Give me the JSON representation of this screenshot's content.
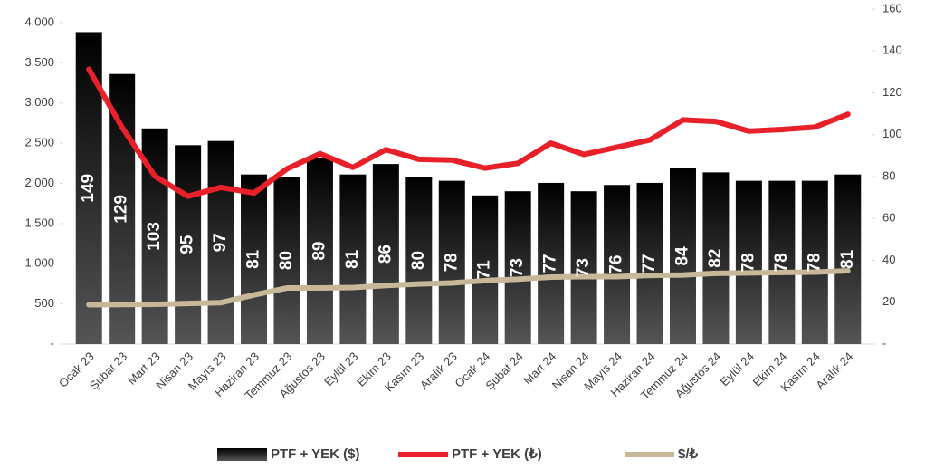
{
  "chart_data": {
    "type": "combo",
    "categories": [
      "Ocak 23",
      "Şubat 23",
      "Mart 23",
      "Nisan 23",
      "Mayıs 23",
      "Haziran 23",
      "Temmuz 23",
      "Ağustos 23",
      "Eylül 23",
      "Ekim 23",
      "Kasım 23",
      "Aralık 23",
      "Ocak 24",
      "Şubat 24",
      "Mart 24",
      "Nisan 24",
      "Mayıs 24",
      "Haziran 24",
      "Temmuz 24",
      "Ağustos 24",
      "Eylül 24",
      "Ekim 24",
      "Kasım 24",
      "Aralık 24"
    ],
    "series": [
      {
        "name": "PTF + YEK ($)",
        "type": "bar",
        "axis": "y2",
        "color": "#000000",
        "values": [
          149,
          129,
          103,
          95,
          97,
          81,
          80,
          89,
          81,
          86,
          80,
          78,
          71,
          73,
          77,
          73,
          76,
          77,
          84,
          82,
          78,
          78,
          78,
          81
        ]
      },
      {
        "name": "PTF + YEK (₺)",
        "type": "line",
        "color": "#e8202a",
        "values": [
          3420,
          2700,
          2090,
          1840,
          1950,
          1880,
          2180,
          2370,
          2200,
          2420,
          2300,
          2290,
          2190,
          2250,
          2500,
          2360,
          2450,
          2540,
          2790,
          2770,
          2650,
          2670,
          2700,
          2860
        ]
      },
      {
        "name": "$/₺",
        "type": "line",
        "axis": "y2",
        "color": "#c8b89a",
        "values": [
          18.8,
          18.9,
          19.0,
          19.4,
          19.8,
          23.5,
          26.8,
          26.8,
          27.0,
          28.0,
          28.7,
          29.2,
          30.3,
          31.0,
          32.0,
          32.2,
          32.2,
          32.8,
          33.0,
          33.8,
          34.0,
          34.2,
          34.4,
          35.0
        ]
      }
    ],
    "ylim": [
      0,
      4000
    ],
    "yticks": [
      {
        "value": 0,
        "label": "-"
      },
      500,
      {
        "value": 1000,
        "label": "1.000"
      },
      {
        "value": 1500,
        "label": "1.500"
      },
      {
        "value": 2000,
        "label": "2.000"
      },
      {
        "value": 2500,
        "label": "2.500"
      },
      {
        "value": 3000,
        "label": "3.000"
      },
      {
        "value": 3500,
        "label": "3.500"
      },
      {
        "value": 4000,
        "label": "4.000"
      }
    ],
    "y2lim": [
      0,
      160
    ],
    "y2ticks": [
      {
        "value": 0,
        "label": "-"
      },
      20,
      40,
      60,
      80,
      100,
      120,
      140,
      160
    ],
    "legend": "bottom"
  }
}
